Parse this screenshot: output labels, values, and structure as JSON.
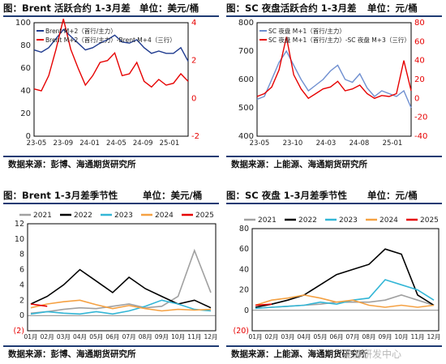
{
  "panels": [
    {
      "title": "图：Brent 活跃合约 1-3月差",
      "unit": "单位：美元/桶",
      "source": "数据来源：彭博、海通期货研究所"
    },
    {
      "title": "图：SC 夜盘活跃合约 1-3月差",
      "unit": "单位：元/桶",
      "source": "数据来源：上能源、海通期货研究所"
    },
    {
      "title": "图：Brent 1-3月差季节性",
      "unit": "单位：美元/桶",
      "source": "数据来源：彭博、海通期货研究所"
    },
    {
      "title": "图：SC 夜盘 1-3月差季节性",
      "unit": "单位：元/桶",
      "source": "数据来源：上能源、海通期货研究所"
    }
  ],
  "watermark": "能源研发中心",
  "chart_data": [
    {
      "type": "line",
      "x_ticks": [
        "23-05",
        "23-09",
        "24-01",
        "24-05",
        "24-09",
        "25-01"
      ],
      "ylim_left": [
        0,
        100
      ],
      "yticks_left": [
        "0",
        "20",
        "40",
        "60",
        "80",
        "100"
      ],
      "ylim_right": [
        -2,
        4
      ],
      "yticks_right": [
        "-2",
        "0",
        "2",
        "4"
      ],
      "series": [
        {
          "name": "Brent M+2（首行/主力）",
          "axis": "left",
          "color": "#1f3b8f",
          "x": [
            "23-05",
            "23-06",
            "23-07",
            "23-08",
            "23-09",
            "23-10",
            "23-11",
            "23-12",
            "24-01",
            "24-02",
            "24-03",
            "24-04",
            "24-05",
            "24-06",
            "24-07",
            "24-08",
            "24-09",
            "24-10",
            "24-11",
            "24-12",
            "25-01",
            "25-02"
          ],
          "values": [
            76,
            74,
            78,
            86,
            94,
            88,
            82,
            76,
            78,
            82,
            85,
            89,
            83,
            82,
            85,
            78,
            73,
            75,
            73,
            73,
            78,
            66
          ]
        },
        {
          "name": "Brent M+2（首行/主力）-Brent M+4（三行）",
          "axis": "right",
          "color": "#e60000",
          "x": [
            "23-05",
            "23-06",
            "23-07",
            "23-08",
            "23-09",
            "23-10",
            "23-11",
            "23-12",
            "24-01",
            "24-02",
            "24-03",
            "24-04",
            "24-05",
            "24-06",
            "24-07",
            "24-08",
            "24-09",
            "24-10",
            "24-11",
            "24-12",
            "25-01",
            "25-02"
          ],
          "values": [
            0.5,
            0.4,
            1.2,
            2.6,
            4.2,
            2.6,
            1.6,
            0.7,
            1.2,
            1.9,
            2.0,
            2.4,
            1.2,
            1.3,
            1.9,
            0.9,
            0.6,
            1.0,
            0.7,
            0.8,
            1.3,
            0.9
          ]
        }
      ]
    },
    {
      "type": "line",
      "x_ticks": [
        "23-05",
        "23-10",
        "24-03",
        "24-08",
        "25-01"
      ],
      "ylim_left": [
        400,
        800
      ],
      "yticks_left": [
        "400",
        "500",
        "600",
        "700",
        "800"
      ],
      "ylim_right": [
        -40,
        80
      ],
      "yticks_right": [
        "-40",
        "-20",
        "0",
        "20",
        "40",
        "60",
        "80"
      ],
      "series": [
        {
          "name": "SC 夜盘 M+1（首行/主力）",
          "axis": "left",
          "color": "#6f8fd0",
          "x": [
            "23-05",
            "23-06",
            "23-07",
            "23-08",
            "23-09",
            "23-10",
            "23-11",
            "23-12",
            "24-01",
            "24-02",
            "24-03",
            "24-04",
            "24-05",
            "24-06",
            "24-07",
            "24-08",
            "24-09",
            "24-10",
            "24-11",
            "24-12",
            "25-01",
            "25-02"
          ],
          "values": [
            530,
            540,
            600,
            660,
            700,
            650,
            600,
            560,
            580,
            600,
            630,
            650,
            600,
            590,
            620,
            570,
            540,
            560,
            550,
            540,
            560,
            500
          ]
        },
        {
          "name": "SC 夜盘 M+1（首行/主力）-SC 夜盘 M+3（三行）",
          "axis": "right",
          "color": "#e60000",
          "x": [
            "23-05",
            "23-06",
            "23-07",
            "23-08",
            "23-09",
            "23-10",
            "23-11",
            "23-12",
            "24-01",
            "24-02",
            "24-03",
            "24-04",
            "24-05",
            "24-06",
            "24-07",
            "24-08",
            "24-09",
            "24-10",
            "24-11",
            "24-12",
            "25-01",
            "25-02"
          ],
          "values": [
            2,
            5,
            12,
            30,
            65,
            25,
            10,
            0,
            5,
            10,
            12,
            18,
            8,
            10,
            14,
            5,
            0,
            3,
            2,
            5,
            40,
            8
          ]
        }
      ]
    },
    {
      "type": "line",
      "legend": "top",
      "x_ticks": [
        "01月",
        "02月",
        "03月",
        "04月",
        "05月",
        "06月",
        "07月",
        "08月",
        "09月",
        "10月",
        "11月",
        "12月"
      ],
      "ylim": [
        -2,
        12
      ],
      "yticks": [
        "(2)",
        "0",
        "2",
        "4",
        "6",
        "8",
        "10",
        "12"
      ],
      "series": [
        {
          "name": "2021",
          "color": "#a0a0a0",
          "values": [
            0.3,
            0.5,
            0.8,
            1.0,
            0.9,
            1.2,
            1.5,
            1.0,
            1.2,
            2.5,
            8.5,
            3.0
          ]
        },
        {
          "name": "2022",
          "color": "#000000",
          "values": [
            1.5,
            2.5,
            4.0,
            6.0,
            4.5,
            3.0,
            5.0,
            3.5,
            2.5,
            1.5,
            2.0,
            1.0
          ]
        },
        {
          "name": "2023",
          "color": "#33b6d6",
          "values": [
            0.2,
            0.5,
            0.3,
            0.2,
            0.5,
            0.2,
            0.6,
            1.2,
            2.0,
            1.5,
            0.8,
            0.6
          ]
        },
        {
          "name": "2024",
          "color": "#f5a142",
          "values": [
            1.0,
            1.5,
            1.8,
            2.0,
            1.4,
            0.9,
            1.3,
            0.9,
            0.6,
            0.8,
            0.7,
            0.8
          ]
        },
        {
          "name": "2025",
          "color": "#e60000",
          "values": [
            1.5,
            1.2
          ]
        }
      ]
    },
    {
      "type": "line",
      "legend": "top",
      "x_ticks": [
        "01月",
        "02月",
        "03月",
        "04月",
        "05月",
        "06月",
        "07月",
        "08月",
        "09月",
        "10月",
        "11月",
        "12月"
      ],
      "ylim": [
        -20,
        80
      ],
      "yticks": [
        "(20)",
        "0",
        "20",
        "40",
        "60",
        "80"
      ],
      "series": [
        {
          "name": "2021",
          "color": "#a0a0a0",
          "values": [
            2,
            3,
            4,
            5,
            6,
            8,
            8,
            8,
            10,
            15,
            10,
            5
          ]
        },
        {
          "name": "2022",
          "color": "#000000",
          "values": [
            3,
            6,
            10,
            15,
            25,
            35,
            40,
            45,
            60,
            55,
            15,
            5
          ]
        },
        {
          "name": "2023",
          "color": "#33b6d6",
          "values": [
            2,
            3,
            4,
            5,
            8,
            6,
            10,
            12,
            30,
            25,
            20,
            10
          ]
        },
        {
          "name": "2024",
          "color": "#f5a142",
          "values": [
            5,
            10,
            12,
            15,
            12,
            8,
            10,
            5,
            3,
            5,
            3,
            5
          ]
        },
        {
          "name": "2025",
          "color": "#e60000",
          "values": [
            5,
            6
          ]
        }
      ]
    }
  ]
}
